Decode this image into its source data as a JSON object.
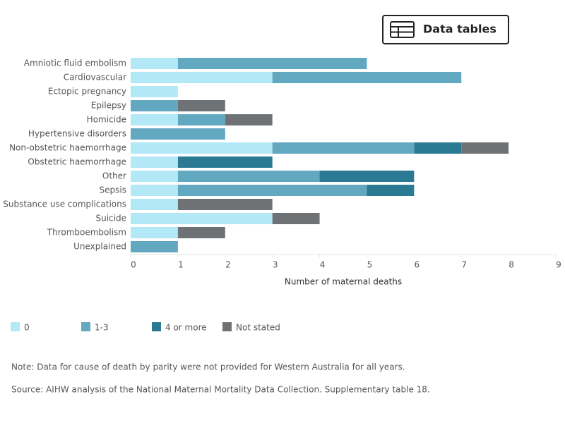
{
  "chart_data": {
    "type": "stacked-bar-horizontal",
    "button": "Data tables",
    "xlabel": "Number of maternal deaths",
    "categories": [
      "Amniotic fluid embolism",
      "Cardiovascular",
      "Ectopic pregnancy",
      "Epilepsy",
      "Homicide",
      "Hypertensive disorders",
      "Non-obstetric haemorrhage",
      "Obstetric haemorrhage",
      "Other",
      "Sepsis",
      "Substance use complications",
      "Suicide",
      "Thromboembolism",
      "Unexplained"
    ],
    "series": [
      {
        "name": "0",
        "color": "#b3e8f7",
        "values": [
          1,
          3,
          1,
          null,
          1,
          null,
          3,
          1,
          1,
          1,
          1,
          3,
          1,
          null
        ]
      },
      {
        "name": "1-3",
        "color": "#62a8c0",
        "values": [
          4,
          4,
          null,
          1,
          1,
          2,
          3,
          null,
          3,
          4,
          null,
          null,
          null,
          1
        ]
      },
      {
        "name": "4 or more",
        "color": "#2a7a93",
        "values": [
          null,
          null,
          null,
          null,
          null,
          null,
          1,
          2,
          2,
          1,
          null,
          null,
          null,
          null
        ]
      },
      {
        "name": "Not stated",
        "color": "#6e7274",
        "values": [
          null,
          null,
          null,
          1,
          1,
          null,
          1,
          null,
          null,
          null,
          2,
          1,
          1,
          null
        ]
      }
    ],
    "xlim": [
      0,
      9
    ],
    "xticks": [
      0,
      1,
      2,
      3,
      4,
      5,
      6,
      7,
      8,
      9
    ],
    "notes": [
      "Note: Data for cause of death by parity were not provided for Western Australia for all years.",
      "Source: AIHW analysis of the National Maternal Mortality Data Collection. Supplementary table 18."
    ]
  }
}
